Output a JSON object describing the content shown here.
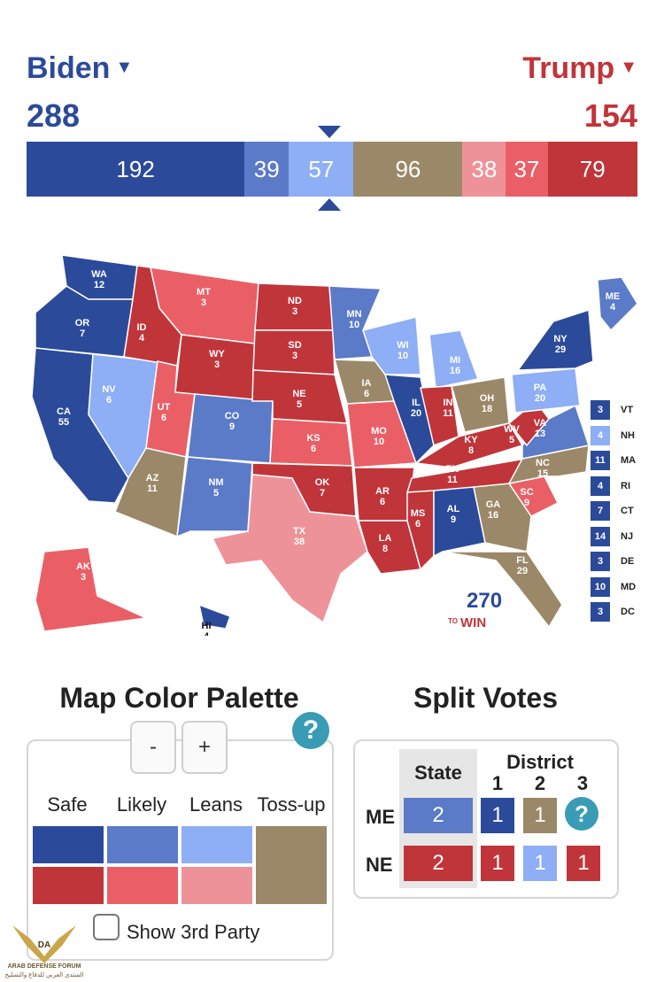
{
  "header": {
    "biden_name": "Biden",
    "trump_name": "Trump",
    "biden_total": "288",
    "trump_total": "154"
  },
  "bar": [
    {
      "label": "192",
      "color": "#2b4a9a",
      "value": 192
    },
    {
      "label": "39",
      "color": "#5b7ac8",
      "value": 39
    },
    {
      "label": "57",
      "color": "#8eaef5",
      "value": 57
    },
    {
      "label": "96",
      "color": "#9b8868",
      "value": 96
    },
    {
      "label": "38",
      "color": "#ee929a",
      "value": 38
    },
    {
      "label": "37",
      "color": "#ea5f66",
      "value": 37
    },
    {
      "label": "79",
      "color": "#c0353a",
      "value": 79
    }
  ],
  "map": {
    "logo_top": "270",
    "logo_to": "TO",
    "logo_win": "WIN",
    "states": [
      {
        "abbr": "WA",
        "ev": "12",
        "color": "#2b4a9a"
      },
      {
        "abbr": "OR",
        "ev": "7",
        "color": "#2b4a9a"
      },
      {
        "abbr": "CA",
        "ev": "55",
        "color": "#2b4a9a"
      },
      {
        "abbr": "NV",
        "ev": "6",
        "color": "#8eaef5"
      },
      {
        "abbr": "ID",
        "ev": "4",
        "color": "#c0353a"
      },
      {
        "abbr": "MT",
        "ev": "3",
        "color": "#ea5f66"
      },
      {
        "abbr": "WY",
        "ev": "3",
        "color": "#c0353a"
      },
      {
        "abbr": "UT",
        "ev": "6",
        "color": "#ea5f66"
      },
      {
        "abbr": "AZ",
        "ev": "11",
        "color": "#9b8868"
      },
      {
        "abbr": "CO",
        "ev": "9",
        "color": "#5b7ac8"
      },
      {
        "abbr": "NM",
        "ev": "5",
        "color": "#5b7ac8"
      },
      {
        "abbr": "ND",
        "ev": "3",
        "color": "#c0353a"
      },
      {
        "abbr": "SD",
        "ev": "3",
        "color": "#c0353a"
      },
      {
        "abbr": "NE",
        "ev": "5",
        "color": "#c0353a"
      },
      {
        "abbr": "KS",
        "ev": "6",
        "color": "#ea5f66"
      },
      {
        "abbr": "OK",
        "ev": "7",
        "color": "#c0353a"
      },
      {
        "abbr": "TX",
        "ev": "38",
        "color": "#ee929a"
      },
      {
        "abbr": "MN",
        "ev": "10",
        "color": "#5b7ac8"
      },
      {
        "abbr": "IA",
        "ev": "6",
        "color": "#9b8868"
      },
      {
        "abbr": "MO",
        "ev": "10",
        "color": "#ea5f66"
      },
      {
        "abbr": "AR",
        "ev": "6",
        "color": "#c0353a"
      },
      {
        "abbr": "LA",
        "ev": "8",
        "color": "#c0353a"
      },
      {
        "abbr": "WI",
        "ev": "10",
        "color": "#8eaef5"
      },
      {
        "abbr": "IL",
        "ev": "20",
        "color": "#2b4a9a"
      },
      {
        "abbr": "MI",
        "ev": "16",
        "color": "#8eaef5"
      },
      {
        "abbr": "IN",
        "ev": "11",
        "color": "#c0353a"
      },
      {
        "abbr": "OH",
        "ev": "18",
        "color": "#9b8868"
      },
      {
        "abbr": "KY",
        "ev": "8",
        "color": "#c0353a"
      },
      {
        "abbr": "TN",
        "ev": "11",
        "color": "#c0353a"
      },
      {
        "abbr": "MS",
        "ev": "6",
        "color": "#c0353a"
      },
      {
        "abbr": "AL",
        "ev": "9",
        "color": "#2b4a9a"
      },
      {
        "abbr": "GA",
        "ev": "16",
        "color": "#9b8868"
      },
      {
        "abbr": "FL",
        "ev": "29",
        "color": "#9b8868"
      },
      {
        "abbr": "SC",
        "ev": "9",
        "color": "#ea5f66"
      },
      {
        "abbr": "NC",
        "ev": "15",
        "color": "#9b8868"
      },
      {
        "abbr": "VA",
        "ev": "13",
        "color": "#5b7ac8"
      },
      {
        "abbr": "WV",
        "ev": "5",
        "color": "#c0353a"
      },
      {
        "abbr": "PA",
        "ev": "20",
        "color": "#8eaef5"
      },
      {
        "abbr": "NY",
        "ev": "29",
        "color": "#2b4a9a"
      },
      {
        "abbr": "ME",
        "ev": "4",
        "color": "#5b7ac8"
      },
      {
        "abbr": "AK",
        "ev": "3",
        "color": "#ea5f66"
      },
      {
        "abbr": "HI",
        "ev": "4",
        "color": "#2b4a9a"
      }
    ],
    "small_states": [
      {
        "abbr": "VT",
        "ev": "3",
        "color": "#2b4a9a"
      },
      {
        "abbr": "NH",
        "ev": "4",
        "color": "#8eaef5"
      },
      {
        "abbr": "MA",
        "ev": "11",
        "color": "#2b4a9a"
      },
      {
        "abbr": "RI",
        "ev": "4",
        "color": "#2b4a9a"
      },
      {
        "abbr": "CT",
        "ev": "7",
        "color": "#2b4a9a"
      },
      {
        "abbr": "NJ",
        "ev": "14",
        "color": "#2b4a9a"
      },
      {
        "abbr": "DE",
        "ev": "3",
        "color": "#2b4a9a"
      },
      {
        "abbr": "MD",
        "ev": "10",
        "color": "#2b4a9a"
      },
      {
        "abbr": "DC",
        "ev": "3",
        "color": "#2b4a9a"
      }
    ]
  },
  "palette": {
    "title": "Map Color Palette",
    "minus": "-",
    "plus": "+",
    "help": "?",
    "labels": [
      "Safe",
      "Likely",
      "Leans",
      "Toss-up"
    ],
    "dem_colors": [
      "#2b4a9a",
      "#5b7ac8",
      "#8eaef5"
    ],
    "rep_colors": [
      "#c0353a",
      "#ea5f66",
      "#ee929a"
    ],
    "tossup_color": "#9b8868",
    "third_party_label": "Show 3rd Party"
  },
  "split": {
    "title": "Split Votes",
    "state_header": "State",
    "district_header": "District",
    "district_numbers": [
      "1",
      "2",
      "3"
    ],
    "rows": [
      {
        "label": "ME",
        "state": "2",
        "state_color": "#5b7ac8",
        "districts": [
          {
            "v": "1",
            "c": "#2b4a9a"
          },
          {
            "v": "1",
            "c": "#9b8868"
          }
        ],
        "help": "?"
      },
      {
        "label": "NE",
        "state": "2",
        "state_color": "#c0353a",
        "districts": [
          {
            "v": "1",
            "c": "#c0353a"
          },
          {
            "v": "1",
            "c": "#8eaef5"
          },
          {
            "v": "1",
            "c": "#c0353a"
          }
        ]
      }
    ]
  },
  "watermark": {
    "line1": "ARAB DEFENSE FORUM",
    "line2": "المنتدى العربي للدفاع والتسليح",
    "mark": "DA"
  }
}
